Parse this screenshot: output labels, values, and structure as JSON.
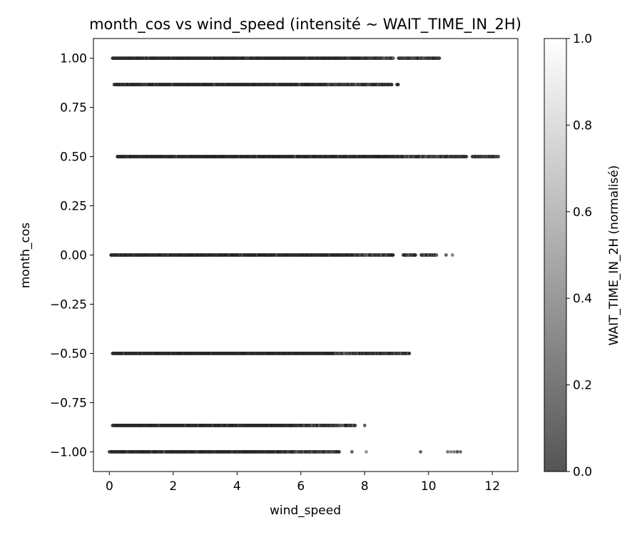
{
  "chart_data": {
    "type": "scatter",
    "title": "month_cos vs wind_speed (intensité ~ WAIT_TIME_IN_2H)",
    "xlabel": "wind_speed",
    "ylabel": "month_cos",
    "xlim": [
      -0.5,
      12.8
    ],
    "ylim": [
      -1.1,
      1.1
    ],
    "x_ticks": [
      0,
      2,
      4,
      6,
      8,
      10,
      12
    ],
    "y_ticks": [
      1.0,
      0.75,
      0.5,
      0.25,
      0.0,
      -0.25,
      -0.5,
      -0.75,
      -1.0
    ],
    "x_tick_labels": [
      "0",
      "2",
      "4",
      "6",
      "8",
      "10",
      "12"
    ],
    "y_tick_labels": [
      "1.00",
      "0.75",
      "0.50",
      "0.25",
      "0.00",
      "−0.25",
      "−0.50",
      "−0.75",
      "−1.00"
    ],
    "grid": false,
    "point_color_scale": "gray",
    "colorbar": {
      "label": "WAIT_TIME_IN_2H (normalisé)",
      "range": [
        0.0,
        1.0
      ],
      "ticks": [
        0.0,
        0.2,
        0.4,
        0.6,
        0.8,
        1.0
      ],
      "tick_labels": [
        "0.0",
        "0.2",
        "0.4",
        "0.6",
        "0.8",
        "1.0"
      ]
    },
    "bands": [
      {
        "y": 1.0,
        "x_min": 0.1,
        "x_max": 10.35,
        "gaps": [
          [
            8.9,
            9.05
          ]
        ],
        "outliers": []
      },
      {
        "y": 0.866,
        "x_min": 0.15,
        "x_max": 9.05,
        "gaps": [
          [
            8.85,
            9.0
          ]
        ],
        "outliers": []
      },
      {
        "y": 0.5,
        "x_min": 0.25,
        "x_max": 12.2,
        "gaps": [
          [
            11.2,
            11.35
          ]
        ],
        "outliers": []
      },
      {
        "y": 0.0,
        "x_min": 0.05,
        "x_max": 10.25,
        "gaps": [
          [
            8.9,
            9.2
          ],
          [
            9.6,
            9.75
          ]
        ],
        "outliers": [
          10.55,
          10.75
        ]
      },
      {
        "y": -0.5,
        "x_min": 0.1,
        "x_max": 9.4,
        "gaps": [],
        "outliers": []
      },
      {
        "y": -0.866,
        "x_min": 0.1,
        "x_max": 7.7,
        "gaps": [
          [
            7.3,
            7.35
          ]
        ],
        "outliers": [
          8.0
        ]
      },
      {
        "y": -1.0,
        "x_min": 0.0,
        "x_max": 7.2,
        "gaps": [
          [
            0.55,
            0.6
          ]
        ],
        "outliers": [
          7.6,
          8.05,
          9.75,
          10.6,
          10.7,
          10.8,
          10.9,
          11.0
        ]
      }
    ]
  }
}
